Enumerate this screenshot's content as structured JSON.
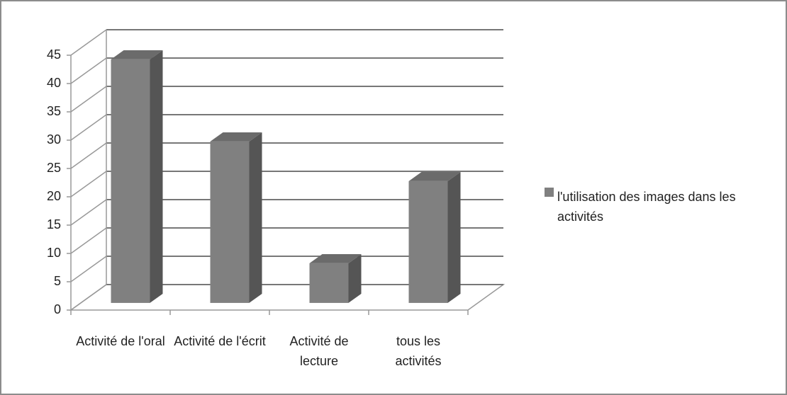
{
  "chart_data": {
    "type": "bar3d",
    "categories": [
      "Activité de l'oral",
      "Activité de l'écrit",
      "Activité de lecture",
      "tous les activités"
    ],
    "series": [
      {
        "name": "l'utilisation des images dans les activités",
        "color": "#808080",
        "values": [
          43,
          28.5,
          7,
          21.5
        ]
      }
    ],
    "ylim": [
      0,
      45
    ],
    "yticks": [
      0,
      5,
      10,
      15,
      20,
      25,
      30,
      35,
      40,
      45
    ],
    "grid": true,
    "legend": "right"
  }
}
